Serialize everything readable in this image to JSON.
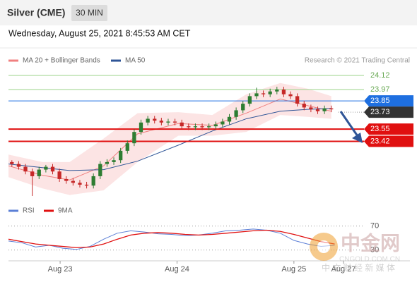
{
  "header": {
    "symbol": "Silver (CME)",
    "timeframe": "30 MIN",
    "datetime": "Wednesday, August 25, 2021 8:45:53 AM CET"
  },
  "chart_data": [
    {
      "type": "candlestick",
      "credit": "Research © 2021 Trading Central",
      "xlim": [
        0,
        52
      ],
      "ylim": [
        22.75,
        24.21
      ],
      "up_color": "#2e7d32",
      "down_color": "#c62828",
      "open": [
        23.2,
        23.18,
        23.15,
        23.1,
        23.05,
        23.12,
        23.15,
        23.1,
        23.02,
        23.0,
        22.98,
        22.96,
        22.95,
        23.05,
        23.18,
        23.2,
        23.22,
        23.32,
        23.4,
        23.52,
        23.62,
        23.66,
        23.64,
        23.62,
        23.63,
        23.62,
        23.58,
        23.57,
        23.58,
        23.57,
        23.58,
        23.6,
        23.63,
        23.68,
        23.75,
        23.82,
        23.9,
        23.93,
        23.92,
        23.95,
        23.97,
        23.92,
        23.9,
        23.82,
        23.78,
        23.76,
        23.74,
        23.77
      ],
      "high": [
        23.22,
        23.21,
        23.18,
        23.13,
        23.15,
        23.17,
        23.18,
        23.13,
        23.05,
        23.03,
        23.01,
        22.99,
        23.08,
        23.21,
        23.23,
        23.25,
        23.35,
        23.43,
        23.55,
        23.65,
        23.69,
        23.69,
        23.67,
        23.66,
        23.66,
        23.65,
        23.61,
        23.61,
        23.61,
        23.61,
        23.63,
        23.66,
        23.71,
        23.78,
        23.85,
        23.93,
        23.99,
        23.96,
        23.98,
        24.0,
        24.0,
        23.95,
        23.93,
        23.85,
        23.81,
        23.79,
        23.8,
        23.8
      ],
      "low": [
        23.15,
        23.12,
        23.07,
        22.84,
        23.02,
        23.09,
        23.07,
        22.99,
        22.97,
        22.95,
        22.93,
        22.92,
        22.92,
        23.02,
        23.15,
        23.17,
        23.19,
        23.29,
        23.37,
        23.49,
        23.59,
        23.61,
        23.59,
        23.59,
        23.59,
        23.55,
        23.54,
        23.54,
        23.54,
        23.54,
        23.55,
        23.57,
        23.6,
        23.65,
        23.72,
        23.79,
        23.87,
        23.89,
        23.89,
        23.92,
        23.89,
        23.87,
        23.79,
        23.75,
        23.73,
        23.71,
        23.71,
        23.73
      ],
      "close": [
        23.18,
        23.15,
        23.1,
        23.05,
        23.12,
        23.15,
        23.1,
        23.02,
        23.0,
        22.98,
        22.96,
        22.95,
        23.05,
        23.18,
        23.2,
        23.22,
        23.32,
        23.4,
        23.52,
        23.62,
        23.66,
        23.64,
        23.62,
        23.63,
        23.62,
        23.58,
        23.57,
        23.58,
        23.57,
        23.58,
        23.6,
        23.63,
        23.68,
        23.75,
        23.82,
        23.9,
        23.93,
        23.92,
        23.95,
        23.97,
        23.92,
        23.9,
        23.82,
        23.78,
        23.76,
        23.74,
        23.77,
        23.76
      ],
      "series": [
        {
          "name": "MA 20 + Bollinger Bands",
          "color": "#f08080",
          "x": [
            0,
            5,
            9,
            14,
            19,
            25,
            30,
            35,
            40,
            44,
            47.5
          ],
          "values": [
            23.16,
            23.06,
            23.01,
            23.16,
            23.5,
            23.61,
            23.59,
            23.72,
            23.87,
            23.8,
            23.74
          ],
          "upper": [
            23.28,
            23.2,
            23.2,
            23.45,
            23.72,
            23.73,
            23.7,
            23.92,
            24.04,
            23.98,
            23.9
          ],
          "lower": [
            23.04,
            22.92,
            22.85,
            22.9,
            23.2,
            23.48,
            23.48,
            23.52,
            23.7,
            23.68,
            23.66
          ]
        },
        {
          "name": "MA 50",
          "color": "#2f5597",
          "x": [
            0,
            9,
            14,
            19,
            25,
            30,
            35,
            40,
            44,
            47.5
          ],
          "values": [
            23.18,
            23.11,
            23.12,
            23.21,
            23.38,
            23.53,
            23.66,
            23.74,
            23.76,
            23.77
          ]
        }
      ],
      "levels": [
        {
          "value": 24.12,
          "style": "line",
          "color": "#9bd38a"
        },
        {
          "value": 23.97,
          "style": "line",
          "color": "#9bd38a"
        },
        {
          "value": 23.85,
          "style": "box",
          "color": "#1e6fe0"
        },
        {
          "value": 23.73,
          "style": "current",
          "color": "#333333"
        },
        {
          "value": 23.55,
          "style": "box",
          "color": "#e01010"
        },
        {
          "value": 23.42,
          "style": "box",
          "color": "#e01010"
        }
      ]
    },
    {
      "type": "line",
      "xlim": [
        0,
        52
      ],
      "ylim": [
        12,
        100
      ],
      "yticks": [
        30,
        70
      ],
      "xticks": [
        {
          "value": 7.6,
          "label": "Aug 23"
        },
        {
          "value": 24.8,
          "label": "Aug 24"
        },
        {
          "value": 42,
          "label": "Aug 25"
        },
        {
          "value": 49.3,
          "label": "Aug 27"
        }
      ],
      "series": [
        {
          "name": "RSI",
          "color": "#5b7fd6",
          "x": [
            0,
            2,
            4,
            6,
            8,
            10,
            12,
            14,
            16,
            18,
            20,
            22,
            24,
            26,
            28,
            30,
            32,
            34,
            36,
            38,
            40,
            42,
            44,
            46,
            48
          ],
          "values": [
            45,
            42,
            35,
            38,
            33,
            31,
            36,
            48,
            58,
            62,
            60,
            57,
            56,
            54,
            55,
            58,
            62,
            63,
            65,
            63,
            58,
            46,
            40,
            36,
            38
          ]
        },
        {
          "name": "9MA",
          "color": "#e01010",
          "x": [
            0,
            2,
            4,
            6,
            8,
            10,
            12,
            14,
            16,
            18,
            20,
            22,
            24,
            26,
            28,
            30,
            32,
            34,
            36,
            38,
            40,
            42,
            44,
            46,
            48
          ],
          "values": [
            48,
            44,
            40,
            38,
            36,
            34,
            35,
            40,
            48,
            55,
            58,
            59,
            58,
            56,
            55,
            56,
            58,
            60,
            62,
            63,
            61,
            56,
            50,
            44,
            40
          ]
        }
      ]
    }
  ],
  "watermark": {
    "brand": "中金网",
    "site": "CNGOLD.COM.CN",
    "slogan": "中 文 财 经 新 媒 体"
  }
}
